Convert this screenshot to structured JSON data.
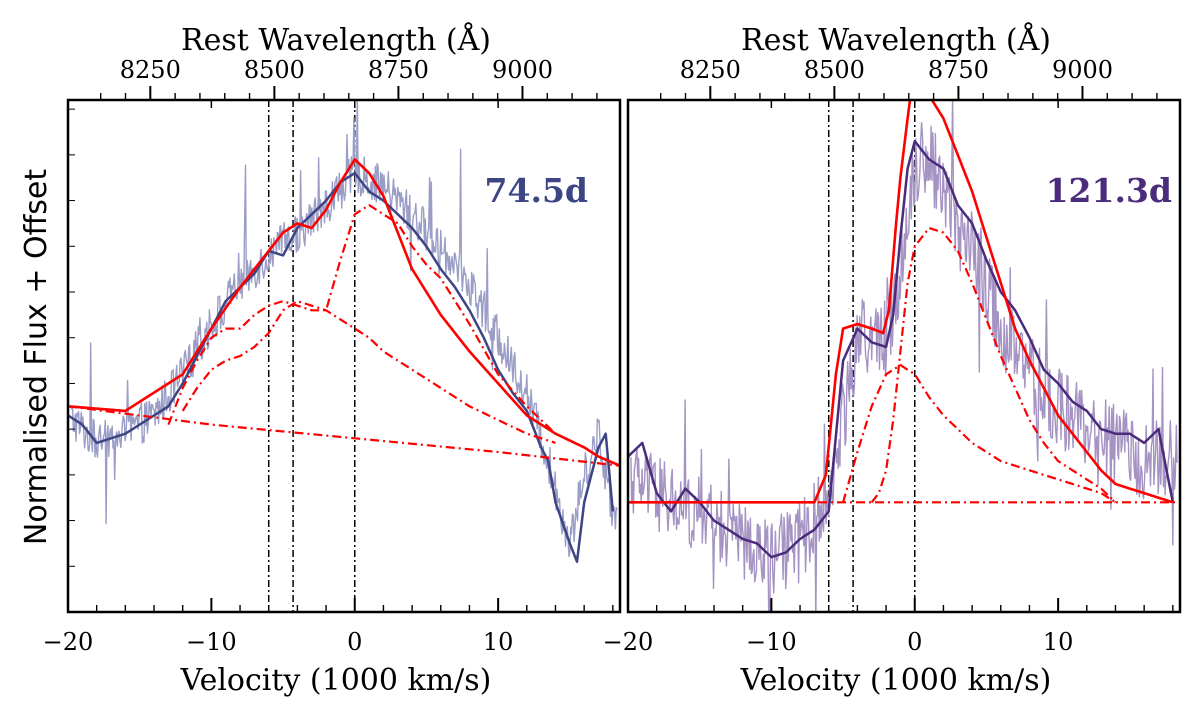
{
  "figure": {
    "ylabel": "Normalised Flux + Offset"
  },
  "chart_data": [
    {
      "type": "line",
      "panel": "left",
      "epoch_label": "74.5d",
      "label_color": "#3d4585",
      "xlabel": "Velocity (1000 km/s)",
      "x2label": "Rest Wavelength (Å)",
      "ylabel": "Normalised Flux + Offset",
      "xlim": [
        -20,
        18.5
      ],
      "ylim": [
        0,
        1.12
      ],
      "x_ticks": [
        -20,
        -10,
        0,
        10
      ],
      "x_tick_labels": [
        "−20",
        "−10",
        "0",
        "10"
      ],
      "x2_ticks": [
        8250,
        8500,
        8750,
        9000
      ],
      "x2_tick_labels": [
        "8250",
        "8500",
        "8750",
        "9000"
      ],
      "vlines": [
        -6.0,
        -4.3,
        0.0
      ],
      "colors": {
        "raw": "#9a9dc6",
        "smooth": "#3d4585",
        "model": "#ff0000"
      },
      "series": [
        {
          "name": "raw spectrum",
          "style": "noisy",
          "noise": 0.045,
          "x": [
            -20,
            -18,
            -16,
            -14,
            -12,
            -10,
            -8,
            -6,
            -4,
            -2,
            0,
            2,
            4,
            6,
            8,
            10,
            12,
            13.5,
            15,
            16,
            17,
            18
          ],
          "y": [
            0.43,
            0.37,
            0.39,
            0.43,
            0.52,
            0.63,
            0.72,
            0.78,
            0.83,
            0.89,
            0.96,
            0.93,
            0.87,
            0.8,
            0.72,
            0.6,
            0.48,
            0.33,
            0.15,
            0.3,
            0.39,
            0.22
          ]
        },
        {
          "name": "smoothed spectrum",
          "style": "smooth",
          "x": [
            -20,
            -19,
            -18,
            -17,
            -16,
            -15,
            -14,
            -13,
            -12,
            -11,
            -10,
            -9,
            -8,
            -7,
            -6,
            -5,
            -4,
            -3,
            -2,
            -1,
            0,
            1,
            2,
            3,
            4,
            5,
            6,
            7,
            8,
            9,
            10,
            11,
            12,
            13,
            13.5,
            14,
            15,
            15.5,
            16,
            17,
            17.5,
            18
          ],
          "y": [
            0.43,
            0.41,
            0.37,
            0.38,
            0.39,
            0.41,
            0.43,
            0.45,
            0.5,
            0.56,
            0.62,
            0.68,
            0.71,
            0.74,
            0.79,
            0.78,
            0.84,
            0.87,
            0.9,
            0.94,
            0.96,
            0.92,
            0.9,
            0.87,
            0.84,
            0.8,
            0.75,
            0.71,
            0.66,
            0.6,
            0.53,
            0.48,
            0.44,
            0.36,
            0.33,
            0.24,
            0.15,
            0.11,
            0.24,
            0.36,
            0.39,
            0.22
          ]
        },
        {
          "name": "total model",
          "style": "solid",
          "x": [
            -20,
            -16,
            -14,
            -12,
            -10,
            -8,
            -6,
            -5,
            -4,
            -3,
            -2,
            -1,
            0,
            1,
            2,
            3,
            4,
            6,
            8,
            10,
            12,
            14,
            16,
            17,
            18.5
          ],
          "y": [
            0.45,
            0.44,
            0.48,
            0.52,
            0.62,
            0.71,
            0.79,
            0.83,
            0.85,
            0.84,
            0.88,
            0.94,
            0.99,
            0.96,
            0.91,
            0.83,
            0.75,
            0.65,
            0.57,
            0.5,
            0.43,
            0.39,
            0.36,
            0.34,
            0.32
          ]
        },
        {
          "name": "continuum",
          "style": "dashdot",
          "x": [
            -20,
            -10,
            0,
            10,
            18.5
          ],
          "y": [
            0.45,
            0.41,
            0.38,
            0.35,
            0.32
          ]
        },
        {
          "name": "component A",
          "style": "dashdot",
          "x": [
            -12,
            -11,
            -10,
            -9,
            -8,
            -7,
            -6,
            -5,
            -4,
            -3,
            -2,
            -1,
            0,
            1,
            2,
            4,
            6,
            8,
            10,
            12,
            14
          ],
          "y": [
            0.44,
            0.49,
            0.53,
            0.55,
            0.56,
            0.58,
            0.61,
            0.66,
            0.68,
            0.67,
            0.66,
            0.64,
            0.62,
            0.6,
            0.57,
            0.53,
            0.49,
            0.45,
            0.42,
            0.39,
            0.37
          ]
        },
        {
          "name": "component B",
          "style": "dashdot",
          "x": [
            -13,
            -12,
            -11,
            -10,
            -9,
            -8,
            -7,
            -6,
            -5,
            -4,
            -3,
            -2,
            -1,
            0,
            1,
            2,
            3,
            4,
            5,
            6,
            7,
            8,
            10,
            12,
            14
          ],
          "y": [
            0.41,
            0.49,
            0.55,
            0.6,
            0.62,
            0.62,
            0.65,
            0.67,
            0.68,
            0.67,
            0.66,
            0.66,
            0.77,
            0.87,
            0.89,
            0.87,
            0.85,
            0.8,
            0.76,
            0.73,
            0.68,
            0.63,
            0.52,
            0.45,
            0.39
          ]
        }
      ]
    },
    {
      "type": "line",
      "panel": "right",
      "epoch_label": "121.3d",
      "label_color": "#4b2c7c",
      "xlabel": "Velocity (1000 km/s)",
      "x2label": "Rest Wavelength (Å)",
      "xlim": [
        -20,
        18.5
      ],
      "ylim": [
        0,
        1.12
      ],
      "x_ticks": [
        -20,
        -10,
        0,
        10
      ],
      "x_tick_labels": [
        "−20",
        "−10",
        "0",
        "10"
      ],
      "x2_ticks": [
        8250,
        8500,
        8750,
        9000
      ],
      "x2_tick_labels": [
        "8250",
        "8500",
        "8750",
        "9000"
      ],
      "vlines": [
        -6.0,
        -4.3,
        0.0
      ],
      "colors": {
        "raw": "#a493c3",
        "smooth": "#4b2c7c",
        "model": "#ff0000"
      },
      "series": [
        {
          "name": "raw spectrum",
          "style": "noisy",
          "noise": 0.085,
          "x": [
            -20,
            -18,
            -16,
            -14,
            -12,
            -10,
            -8,
            -6,
            -4,
            -2,
            -1,
            0,
            1,
            2,
            4,
            6,
            8,
            10,
            12,
            14,
            16,
            18
          ],
          "y": [
            0.3,
            0.26,
            0.22,
            0.2,
            0.15,
            0.12,
            0.15,
            0.25,
            0.6,
            0.6,
            0.75,
            0.98,
            1.0,
            0.92,
            0.8,
            0.62,
            0.52,
            0.45,
            0.4,
            0.37,
            0.33,
            0.34
          ]
        },
        {
          "name": "smoothed spectrum",
          "style": "smooth",
          "x": [
            -20,
            -19,
            -18,
            -17,
            -16,
            -15,
            -14,
            -13,
            -12,
            -11,
            -10,
            -9,
            -8,
            -7,
            -6,
            -5,
            -4,
            -3,
            -2,
            -1.5,
            -1,
            -0.5,
            0,
            0.5,
            1,
            2,
            3,
            4,
            5,
            6,
            7,
            8,
            9,
            10,
            11,
            12,
            13,
            14,
            15,
            16,
            17,
            18
          ],
          "y": [
            0.34,
            0.37,
            0.26,
            0.22,
            0.27,
            0.24,
            0.2,
            0.18,
            0.16,
            0.15,
            0.12,
            0.13,
            0.16,
            0.18,
            0.22,
            0.55,
            0.62,
            0.59,
            0.58,
            0.65,
            0.82,
            0.97,
            1.03,
            1.01,
            0.99,
            0.97,
            0.89,
            0.85,
            0.77,
            0.7,
            0.66,
            0.6,
            0.53,
            0.5,
            0.46,
            0.44,
            0.4,
            0.39,
            0.39,
            0.37,
            0.4,
            0.24
          ]
        },
        {
          "name": "total model",
          "style": "solid",
          "x": [
            -20,
            -7,
            -6.2,
            -5.5,
            -5,
            -4,
            -3,
            -2.2,
            -1.8,
            -1.3,
            -1,
            -0.5,
            0,
            0.5,
            1,
            2,
            3,
            4,
            5,
            6,
            7,
            8,
            9,
            10,
            11,
            12,
            13,
            14,
            15,
            16,
            17,
            18
          ],
          "y": [
            0.24,
            0.24,
            0.3,
            0.52,
            0.62,
            0.63,
            0.62,
            0.61,
            0.66,
            0.85,
            0.95,
            1.08,
            1.2,
            1.18,
            1.13,
            1.08,
            1.0,
            0.92,
            0.82,
            0.72,
            0.62,
            0.55,
            0.49,
            0.43,
            0.39,
            0.35,
            0.31,
            0.28,
            0.27,
            0.26,
            0.25,
            0.24
          ]
        },
        {
          "name": "continuum",
          "style": "dashdot",
          "x": [
            -20,
            18.5
          ],
          "y": [
            0.24,
            0.24
          ]
        },
        {
          "name": "component A",
          "style": "dashdot",
          "x": [
            -5,
            -4,
            -3,
            -2,
            -1,
            0,
            1,
            2,
            3,
            4,
            5,
            6,
            7,
            8,
            9,
            10,
            11,
            12,
            13,
            14
          ],
          "y": [
            0.24,
            0.35,
            0.45,
            0.52,
            0.54,
            0.52,
            0.47,
            0.43,
            0.4,
            0.37,
            0.35,
            0.33,
            0.32,
            0.31,
            0.3,
            0.29,
            0.28,
            0.27,
            0.26,
            0.24
          ]
        },
        {
          "name": "component B",
          "style": "dashdot",
          "x": [
            -3,
            -2.5,
            -2,
            -1.5,
            -1,
            -0.5,
            0,
            1,
            2,
            3,
            4,
            5,
            6,
            7,
            8,
            9,
            10,
            11,
            12,
            13,
            14
          ],
          "y": [
            0.24,
            0.26,
            0.31,
            0.42,
            0.57,
            0.72,
            0.8,
            0.84,
            0.83,
            0.79,
            0.72,
            0.64,
            0.56,
            0.49,
            0.42,
            0.37,
            0.33,
            0.31,
            0.29,
            0.27,
            0.24
          ]
        }
      ]
    }
  ]
}
